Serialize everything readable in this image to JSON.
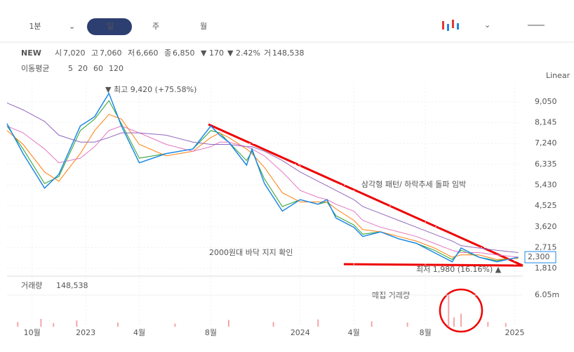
{
  "toolbar": {
    "intervals": [
      "1분",
      "일",
      "주",
      "월"
    ],
    "selected": 1
  },
  "quote": {
    "name": "NEW",
    "items": [
      {
        "label": "시",
        "value": "7,020"
      },
      {
        "label": "고",
        "value": "7,060"
      },
      {
        "label": "저",
        "value": "6,660"
      },
      {
        "label": "종",
        "value": "6,850"
      }
    ],
    "change": "▼ 170",
    "change_pct": "▼ 2.42%",
    "volume_label": "거",
    "volume": "148,538"
  },
  "ma_title": "이동평균",
  "scale_mode": "Linear",
  "chart_data": {
    "type": "line",
    "x": [
      -1.4,
      -0.5,
      0.7,
      1.5,
      2.7,
      3.5,
      4.3,
      5,
      6,
      7.5,
      9,
      10,
      10.5,
      11,
      12,
      12.3,
      13,
      14,
      15,
      16,
      16.5,
      17,
      18,
      18.5,
      19.5,
      20.5,
      21.5,
      22.5,
      23.5,
      24,
      25,
      26,
      27.2
    ],
    "values": [
      8100,
      6800,
      5300,
      5900,
      8000,
      8400,
      9420,
      8000,
      6400,
      6800,
      7000,
      8000,
      7600,
      7300,
      6300,
      7000,
      5500,
      4300,
      4800,
      4600,
      4800,
      4000,
      3600,
      3200,
      3400,
      3100,
      2900,
      2500,
      2100,
      2700,
      2300,
      2100,
      2300
    ],
    "color": "#1e88e5",
    "series": [
      {
        "name": "5",
        "color": "#2ca02c",
        "values": [
          8000,
          7000,
          5500,
          5800,
          7800,
          8300,
          9100,
          8100,
          6600,
          6800,
          7000,
          7800,
          7700,
          7300,
          6500,
          6900,
          5700,
          4500,
          4800,
          4600,
          4700,
          4100,
          3700,
          3300,
          3400,
          3100,
          2900,
          2600,
          2200,
          2600,
          2300,
          2150,
          2280
        ]
      },
      {
        "name": "20",
        "color": "#ff7f0e",
        "values": [
          7800,
          7200,
          6000,
          5600,
          6800,
          7800,
          8500,
          8300,
          7200,
          6700,
          6900,
          7500,
          7700,
          7500,
          7000,
          6800,
          6200,
          5100,
          4700,
          4700,
          4700,
          4400,
          3900,
          3500,
          3400,
          3200,
          3000,
          2700,
          2300,
          2400,
          2400,
          2200,
          2250
        ]
      },
      {
        "name": "60",
        "color": "#e377c2",
        "values": [
          8000,
          7700,
          7000,
          6400,
          6600,
          7100,
          7800,
          8000,
          7700,
          7200,
          6900,
          7100,
          7300,
          7300,
          7100,
          7000,
          6700,
          6000,
          5200,
          4900,
          4800,
          4600,
          4300,
          3900,
          3600,
          3400,
          3200,
          2900,
          2600,
          2500,
          2500,
          2400,
          2300
        ]
      },
      {
        "name": "120",
        "color": "#9467bd",
        "values": [
          9000,
          8700,
          8200,
          7600,
          7300,
          7300,
          7500,
          7700,
          7700,
          7600,
          7300,
          7200,
          7200,
          7200,
          7100,
          7100,
          6900,
          6500,
          6000,
          5600,
          5400,
          5200,
          4800,
          4500,
          4200,
          3900,
          3600,
          3300,
          3000,
          2800,
          2700,
          2600,
          2500
        ]
      }
    ],
    "xlim": [
      -1.4,
      27.45
    ],
    "ylim": [
      1630,
      9810
    ],
    "xticks": [
      {
        "value": 0,
        "label": "10월"
      },
      {
        "value": 3,
        "label": "2023"
      },
      {
        "value": 6,
        "label": "4월"
      },
      {
        "value": 10,
        "label": "8월"
      },
      {
        "value": 15,
        "label": "2024"
      },
      {
        "value": 18,
        "label": "4월"
      },
      {
        "value": 22,
        "label": "8월"
      },
      {
        "value": 27,
        "label": "2025"
      }
    ],
    "yticks": [
      {
        "value": 9050,
        "label": "9,050"
      },
      {
        "value": 8145,
        "label": "8,145"
      },
      {
        "value": 7240,
        "label": "7,240"
      },
      {
        "value": 6335,
        "label": "6,335"
      },
      {
        "value": 5430,
        "label": "5,430"
      },
      {
        "value": 4525,
        "label": "4,525"
      },
      {
        "value": 3620,
        "label": "3,620"
      },
      {
        "value": 2715,
        "label": "2,715"
      },
      {
        "value": 1810,
        "label": "1,810"
      }
    ],
    "current": {
      "value": 2300,
      "label": "2,300"
    },
    "high_note": "▼ 최고 9,420 (+75.58%)",
    "low_note": "최저 1,980 (16.16%) ▲",
    "annotations": [
      "삼각형 패턴/ 하락추세 돌파 임박",
      "2000원대 바닥 지지 확인",
      "매집 거래량"
    ],
    "volume": {
      "title": "거래량",
      "last": "148,538",
      "x": [
        -0.8,
        0.5,
        1.2,
        2.5,
        4.8,
        8,
        11,
        13.5,
        16,
        19,
        21,
        23.3,
        23.6,
        24,
        25.5,
        26.5
      ],
      "values": [
        900000,
        1500000,
        700000,
        1200000,
        800000,
        600000,
        1300000,
        900000,
        1400000,
        1000000,
        800000,
        6050000,
        1800000,
        2500000,
        900000,
        700000
      ],
      "color": "#f4a6a6",
      "ylim": [
        0,
        8740000
      ],
      "yticks": [
        {
          "value": 6050000,
          "label": "6.05m"
        }
      ]
    }
  }
}
